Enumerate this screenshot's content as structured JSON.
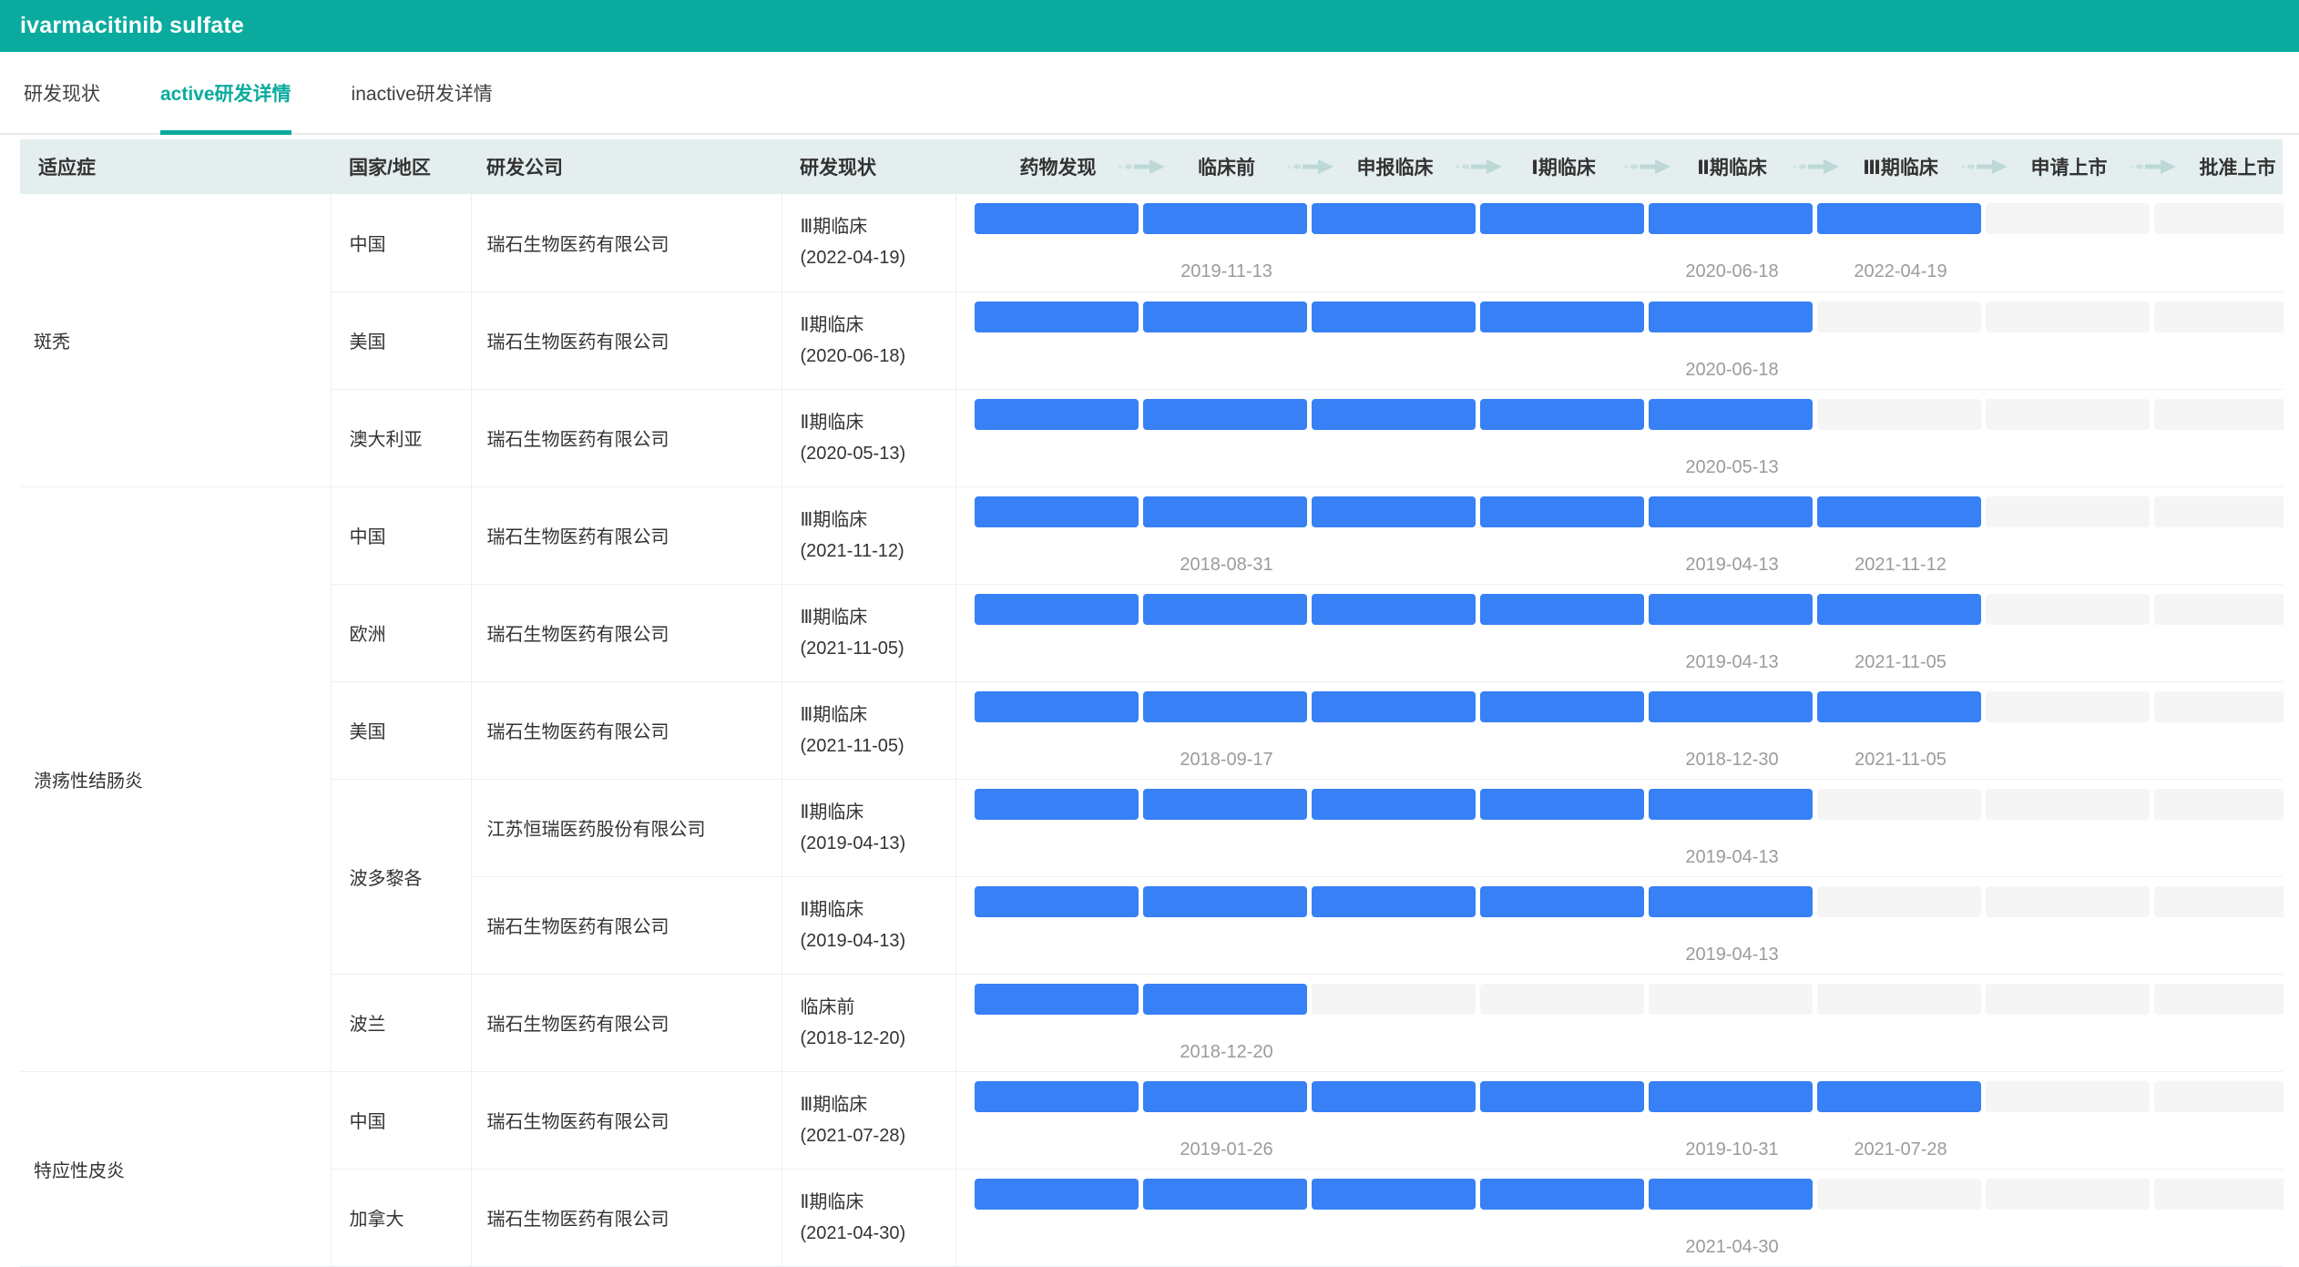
{
  "app": {
    "title": "ivarmacitinib sulfate"
  },
  "tabs": [
    {
      "label": "研发现状",
      "active": false
    },
    {
      "label": "active研发详情",
      "active": true
    },
    {
      "label": "inactive研发详情",
      "active": false
    }
  ],
  "colors": {
    "accent": "#0aab9e",
    "header_bg": "#e4eeee",
    "bar_filled": "#3780f5",
    "bar_empty": "#f5f5f6",
    "border": "#edf0f3",
    "date_text": "#9b9b9b",
    "text": "#333333",
    "arrow": "#bcd9d7"
  },
  "icons": {
    "stage_arrow": "right-arrow-icon"
  },
  "table": {
    "columns": [
      {
        "label": "适应症"
      },
      {
        "label": "国家/地区"
      },
      {
        "label": "研发公司"
      },
      {
        "label": "研发现状"
      }
    ],
    "stages": [
      "药物发现",
      "临床前",
      "申报临床",
      "Ⅰ期临床",
      "Ⅱ期临床",
      "Ⅲ期临床",
      "申请上市",
      "批准上市"
    ],
    "groups": [
      {
        "indication": "斑秃",
        "rows": [
          {
            "country": "中国",
            "country_rowspan": 1,
            "company": "瑞石生物医药有限公司",
            "phase": "Ⅲ期临床",
            "phase_date": "(2022-04-19)",
            "stages_completed": 6,
            "milestones": [
              {
                "stage": 1,
                "date": "2019-11-13"
              },
              {
                "stage": 4,
                "date": "2020-06-18"
              },
              {
                "stage": 5,
                "date": "2022-04-19"
              }
            ]
          },
          {
            "country": "美国",
            "country_rowspan": 1,
            "company": "瑞石生物医药有限公司",
            "phase": "Ⅱ期临床",
            "phase_date": "(2020-06-18)",
            "stages_completed": 5,
            "milestones": [
              {
                "stage": 4,
                "date": "2020-06-18"
              }
            ]
          },
          {
            "country": "澳大利亚",
            "country_rowspan": 1,
            "company": "瑞石生物医药有限公司",
            "phase": "Ⅱ期临床",
            "phase_date": "(2020-05-13)",
            "stages_completed": 5,
            "milestones": [
              {
                "stage": 4,
                "date": "2020-05-13"
              }
            ]
          }
        ]
      },
      {
        "indication": "溃疡性结肠炎",
        "rows": [
          {
            "country": "中国",
            "country_rowspan": 1,
            "company": "瑞石生物医药有限公司",
            "phase": "Ⅲ期临床",
            "phase_date": "(2021-11-12)",
            "stages_completed": 6,
            "milestones": [
              {
                "stage": 1,
                "date": "2018-08-31"
              },
              {
                "stage": 4,
                "date": "2019-04-13"
              },
              {
                "stage": 5,
                "date": "2021-11-12"
              }
            ]
          },
          {
            "country": "欧洲",
            "country_rowspan": 1,
            "company": "瑞石生物医药有限公司",
            "phase": "Ⅲ期临床",
            "phase_date": "(2021-11-05)",
            "stages_completed": 6,
            "milestones": [
              {
                "stage": 4,
                "date": "2019-04-13"
              },
              {
                "stage": 5,
                "date": "2021-11-05"
              }
            ]
          },
          {
            "country": "美国",
            "country_rowspan": 1,
            "company": "瑞石生物医药有限公司",
            "phase": "Ⅲ期临床",
            "phase_date": "(2021-11-05)",
            "stages_completed": 6,
            "milestones": [
              {
                "stage": 1,
                "date": "2018-09-17"
              },
              {
                "stage": 4,
                "date": "2018-12-30"
              },
              {
                "stage": 5,
                "date": "2021-11-05"
              }
            ]
          },
          {
            "country": "波多黎各",
            "country_rowspan": 2,
            "company": "江苏恒瑞医药股份有限公司",
            "phase": "Ⅱ期临床",
            "phase_date": "(2019-04-13)",
            "stages_completed": 5,
            "milestones": [
              {
                "stage": 4,
                "date": "2019-04-13"
              }
            ]
          },
          {
            "country": null,
            "company": "瑞石生物医药有限公司",
            "phase": "Ⅱ期临床",
            "phase_date": "(2019-04-13)",
            "stages_completed": 5,
            "milestones": [
              {
                "stage": 4,
                "date": "2019-04-13"
              }
            ]
          },
          {
            "country": "波兰",
            "country_rowspan": 1,
            "company": "瑞石生物医药有限公司",
            "phase": "临床前",
            "phase_date": "(2018-12-20)",
            "stages_completed": 2,
            "milestones": [
              {
                "stage": 1,
                "date": "2018-12-20"
              }
            ]
          }
        ]
      },
      {
        "indication": "特应性皮炎",
        "rows": [
          {
            "country": "中国",
            "country_rowspan": 1,
            "company": "瑞石生物医药有限公司",
            "phase": "Ⅲ期临床",
            "phase_date": "(2021-07-28)",
            "stages_completed": 6,
            "milestones": [
              {
                "stage": 1,
                "date": "2019-01-26"
              },
              {
                "stage": 4,
                "date": "2019-10-31"
              },
              {
                "stage": 5,
                "date": "2021-07-28"
              }
            ]
          },
          {
            "country": "加拿大",
            "country_rowspan": 1,
            "company": "瑞石生物医药有限公司",
            "phase": "Ⅱ期临床",
            "phase_date": "(2021-04-30)",
            "stages_completed": 5,
            "milestones": [
              {
                "stage": 4,
                "date": "2021-04-30"
              }
            ]
          }
        ]
      }
    ]
  }
}
